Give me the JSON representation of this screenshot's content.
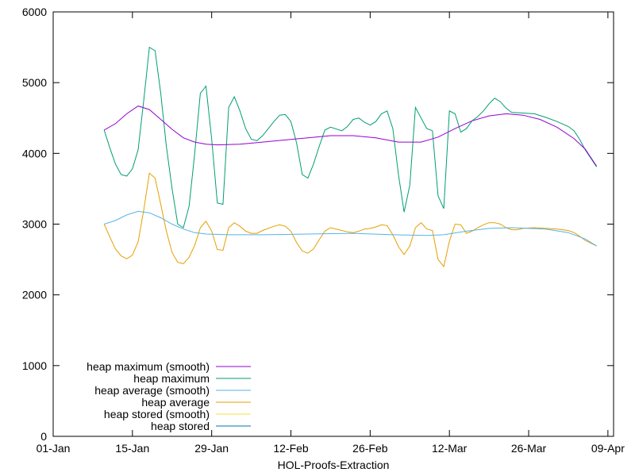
{
  "chart_data": {
    "type": "line",
    "title": "",
    "xlabel": "HOL-Proofs-Extraction",
    "ylabel": "",
    "x_ticks": [
      "01-Jan",
      "15-Jan",
      "29-Jan",
      "12-Feb",
      "26-Feb",
      "12-Mar",
      "26-Mar",
      "09-Apr"
    ],
    "xlim": [
      "2024-01-01",
      "2024-04-09"
    ],
    "ylim": [
      0,
      6000
    ],
    "y_ticks": [
      "0",
      "1000",
      "2000",
      "3000",
      "4000",
      "5000",
      "6000"
    ],
    "grid": false,
    "legend_position": "bottom-left",
    "series": [
      {
        "name": "heap maximum (smooth)",
        "color": "#9400d3",
        "points": [
          [
            "2024-01-10",
            4330
          ],
          [
            "2024-01-12",
            4420
          ],
          [
            "2024-01-14",
            4560
          ],
          [
            "2024-01-16",
            4670
          ],
          [
            "2024-01-18",
            4620
          ],
          [
            "2024-01-20",
            4480
          ],
          [
            "2024-01-22",
            4340
          ],
          [
            "2024-01-24",
            4220
          ],
          [
            "2024-01-26",
            4160
          ],
          [
            "2024-01-28",
            4130
          ],
          [
            "2024-01-30",
            4120
          ],
          [
            "2024-02-03",
            4130
          ],
          [
            "2024-02-07",
            4160
          ],
          [
            "2024-02-11",
            4190
          ],
          [
            "2024-02-15",
            4220
          ],
          [
            "2024-02-19",
            4250
          ],
          [
            "2024-02-23",
            4250
          ],
          [
            "2024-02-27",
            4220
          ],
          [
            "2024-03-02",
            4160
          ],
          [
            "2024-03-06",
            4160
          ],
          [
            "2024-03-09",
            4230
          ],
          [
            "2024-03-12",
            4350
          ],
          [
            "2024-03-15",
            4460
          ],
          [
            "2024-03-18",
            4530
          ],
          [
            "2024-03-21",
            4560
          ],
          [
            "2024-03-24",
            4540
          ],
          [
            "2024-03-27",
            4480
          ],
          [
            "2024-03-30",
            4370
          ],
          [
            "2024-04-02",
            4210
          ],
          [
            "2024-04-04",
            4060
          ],
          [
            "2024-04-06",
            3820
          ]
        ]
      },
      {
        "name": "heap maximum",
        "color": "#009e73",
        "points": [
          [
            "2024-01-10",
            4330
          ],
          [
            "2024-01-11",
            4080
          ],
          [
            "2024-01-12",
            3850
          ],
          [
            "2024-01-13",
            3700
          ],
          [
            "2024-01-14",
            3680
          ],
          [
            "2024-01-15",
            3780
          ],
          [
            "2024-01-16",
            4050
          ],
          [
            "2024-01-17",
            4750
          ],
          [
            "2024-01-18",
            5500
          ],
          [
            "2024-01-19",
            5450
          ],
          [
            "2024-01-20",
            4850
          ],
          [
            "2024-01-21",
            4100
          ],
          [
            "2024-01-22",
            3500
          ],
          [
            "2024-01-23",
            3000
          ],
          [
            "2024-01-24",
            2950
          ],
          [
            "2024-01-25",
            3250
          ],
          [
            "2024-01-26",
            4000
          ],
          [
            "2024-01-27",
            4850
          ],
          [
            "2024-01-28",
            4950
          ],
          [
            "2024-01-29",
            4200
          ],
          [
            "2024-01-30",
            3300
          ],
          [
            "2024-01-31",
            3280
          ],
          [
            "2024-02-01",
            4650
          ],
          [
            "2024-02-02",
            4800
          ],
          [
            "2024-02-03",
            4600
          ],
          [
            "2024-02-04",
            4350
          ],
          [
            "2024-02-05",
            4200
          ],
          [
            "2024-02-06",
            4180
          ],
          [
            "2024-02-07",
            4250
          ],
          [
            "2024-02-09",
            4450
          ],
          [
            "2024-02-10",
            4540
          ],
          [
            "2024-02-11",
            4550
          ],
          [
            "2024-02-12",
            4450
          ],
          [
            "2024-02-13",
            4150
          ],
          [
            "2024-02-14",
            3700
          ],
          [
            "2024-02-15",
            3650
          ],
          [
            "2024-02-16",
            3850
          ],
          [
            "2024-02-17",
            4100
          ],
          [
            "2024-02-18",
            4330
          ],
          [
            "2024-02-19",
            4370
          ],
          [
            "2024-02-21",
            4320
          ],
          [
            "2024-02-22",
            4380
          ],
          [
            "2024-02-23",
            4480
          ],
          [
            "2024-02-24",
            4500
          ],
          [
            "2024-02-25",
            4440
          ],
          [
            "2024-02-26",
            4400
          ],
          [
            "2024-02-27",
            4450
          ],
          [
            "2024-02-28",
            4560
          ],
          [
            "2024-02-29",
            4600
          ],
          [
            "2024-03-01",
            4350
          ],
          [
            "2024-03-02",
            3700
          ],
          [
            "2024-03-03",
            3170
          ],
          [
            "2024-03-04",
            3550
          ],
          [
            "2024-03-05",
            4650
          ],
          [
            "2024-03-06",
            4500
          ],
          [
            "2024-03-07",
            4350
          ],
          [
            "2024-03-08",
            4320
          ],
          [
            "2024-03-09",
            3400
          ],
          [
            "2024-03-10",
            3220
          ],
          [
            "2024-03-11",
            4600
          ],
          [
            "2024-03-12",
            4560
          ],
          [
            "2024-03-13",
            4300
          ],
          [
            "2024-03-14",
            4350
          ],
          [
            "2024-03-15",
            4460
          ],
          [
            "2024-03-16",
            4520
          ],
          [
            "2024-03-17",
            4600
          ],
          [
            "2024-03-18",
            4700
          ],
          [
            "2024-03-19",
            4780
          ],
          [
            "2024-03-20",
            4730
          ],
          [
            "2024-03-21",
            4640
          ],
          [
            "2024-03-22",
            4580
          ],
          [
            "2024-03-24",
            4570
          ],
          [
            "2024-03-26",
            4560
          ],
          [
            "2024-03-28",
            4510
          ],
          [
            "2024-03-30",
            4450
          ],
          [
            "2024-04-01",
            4380
          ],
          [
            "2024-04-02",
            4320
          ],
          [
            "2024-04-03",
            4200
          ],
          [
            "2024-04-04",
            4050
          ],
          [
            "2024-04-06",
            3810
          ]
        ]
      },
      {
        "name": "heap average (smooth)",
        "color": "#56b4e9",
        "points": [
          [
            "2024-01-10",
            3000
          ],
          [
            "2024-01-12",
            3050
          ],
          [
            "2024-01-14",
            3130
          ],
          [
            "2024-01-16",
            3180
          ],
          [
            "2024-01-18",
            3160
          ],
          [
            "2024-01-20",
            3090
          ],
          [
            "2024-01-22",
            3000
          ],
          [
            "2024-01-24",
            2930
          ],
          [
            "2024-01-26",
            2880
          ],
          [
            "2024-01-28",
            2860
          ],
          [
            "2024-02-01",
            2850
          ],
          [
            "2024-02-07",
            2850
          ],
          [
            "2024-02-15",
            2860
          ],
          [
            "2024-02-23",
            2870
          ],
          [
            "2024-03-01",
            2850
          ],
          [
            "2024-03-07",
            2840
          ],
          [
            "2024-03-10",
            2850
          ],
          [
            "2024-03-14",
            2900
          ],
          [
            "2024-03-18",
            2940
          ],
          [
            "2024-03-22",
            2950
          ],
          [
            "2024-03-28",
            2930
          ],
          [
            "2024-04-01",
            2880
          ],
          [
            "2024-04-04",
            2790
          ],
          [
            "2024-04-06",
            2690
          ]
        ]
      },
      {
        "name": "heap average",
        "color": "#e69f00",
        "points": [
          [
            "2024-01-10",
            3000
          ],
          [
            "2024-01-11",
            2820
          ],
          [
            "2024-01-12",
            2650
          ],
          [
            "2024-01-13",
            2550
          ],
          [
            "2024-01-14",
            2510
          ],
          [
            "2024-01-15",
            2560
          ],
          [
            "2024-01-16",
            2750
          ],
          [
            "2024-01-17",
            3200
          ],
          [
            "2024-01-18",
            3720
          ],
          [
            "2024-01-19",
            3650
          ],
          [
            "2024-01-20",
            3280
          ],
          [
            "2024-01-21",
            2900
          ],
          [
            "2024-01-22",
            2600
          ],
          [
            "2024-01-23",
            2460
          ],
          [
            "2024-01-24",
            2440
          ],
          [
            "2024-01-25",
            2530
          ],
          [
            "2024-01-26",
            2700
          ],
          [
            "2024-01-27",
            2950
          ],
          [
            "2024-01-28",
            3040
          ],
          [
            "2024-01-29",
            2900
          ],
          [
            "2024-01-30",
            2640
          ],
          [
            "2024-01-31",
            2630
          ],
          [
            "2024-02-01",
            2950
          ],
          [
            "2024-02-02",
            3020
          ],
          [
            "2024-02-03",
            2970
          ],
          [
            "2024-02-04",
            2900
          ],
          [
            "2024-02-05",
            2870
          ],
          [
            "2024-02-06",
            2870
          ],
          [
            "2024-02-07",
            2910
          ],
          [
            "2024-02-09",
            2970
          ],
          [
            "2024-02-10",
            2990
          ],
          [
            "2024-02-11",
            2970
          ],
          [
            "2024-02-12",
            2900
          ],
          [
            "2024-02-13",
            2740
          ],
          [
            "2024-02-14",
            2620
          ],
          [
            "2024-02-15",
            2590
          ],
          [
            "2024-02-16",
            2650
          ],
          [
            "2024-02-17",
            2780
          ],
          [
            "2024-02-18",
            2900
          ],
          [
            "2024-02-19",
            2950
          ],
          [
            "2024-02-21",
            2910
          ],
          [
            "2024-02-22",
            2890
          ],
          [
            "2024-02-23",
            2880
          ],
          [
            "2024-02-24",
            2900
          ],
          [
            "2024-02-25",
            2930
          ],
          [
            "2024-02-26",
            2940
          ],
          [
            "2024-02-27",
            2960
          ],
          [
            "2024-02-28",
            2990
          ],
          [
            "2024-02-29",
            2980
          ],
          [
            "2024-03-01",
            2850
          ],
          [
            "2024-03-02",
            2680
          ],
          [
            "2024-03-03",
            2570
          ],
          [
            "2024-03-04",
            2690
          ],
          [
            "2024-03-05",
            2950
          ],
          [
            "2024-03-06",
            3020
          ],
          [
            "2024-03-07",
            2930
          ],
          [
            "2024-03-08",
            2910
          ],
          [
            "2024-03-09",
            2500
          ],
          [
            "2024-03-10",
            2400
          ],
          [
            "2024-03-11",
            2760
          ],
          [
            "2024-03-12",
            3000
          ],
          [
            "2024-03-13",
            2990
          ],
          [
            "2024-03-14",
            2870
          ],
          [
            "2024-03-15",
            2900
          ],
          [
            "2024-03-16",
            2950
          ],
          [
            "2024-03-17",
            2990
          ],
          [
            "2024-03-18",
            3020
          ],
          [
            "2024-03-19",
            3020
          ],
          [
            "2024-03-20",
            3000
          ],
          [
            "2024-03-21",
            2950
          ],
          [
            "2024-03-22",
            2920
          ],
          [
            "2024-03-23",
            2920
          ],
          [
            "2024-03-24",
            2940
          ],
          [
            "2024-03-26",
            2950
          ],
          [
            "2024-03-28",
            2940
          ],
          [
            "2024-03-30",
            2930
          ],
          [
            "2024-04-01",
            2910
          ],
          [
            "2024-04-02",
            2880
          ],
          [
            "2024-04-03",
            2830
          ],
          [
            "2024-04-04",
            2770
          ],
          [
            "2024-04-06",
            2690
          ]
        ]
      },
      {
        "name": "heap stored (smooth)",
        "color": "#f0e442",
        "points": []
      },
      {
        "name": "heap stored",
        "color": "#0072b2",
        "points": []
      }
    ]
  }
}
